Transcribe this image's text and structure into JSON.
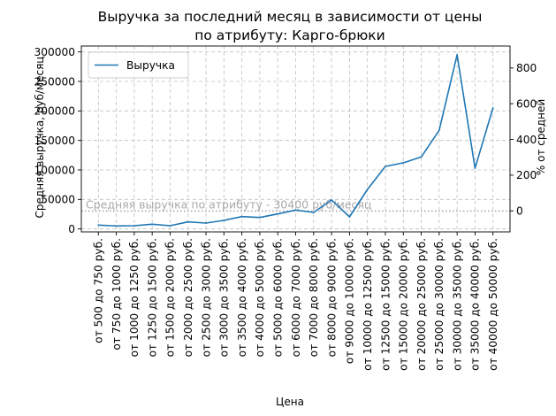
{
  "chart_data": {
    "type": "line",
    "title_line1": "Выручка за последний месяц в зависимости от цены",
    "title_line2": "по атрибуту: Карго-брюки",
    "xlabel": "Цена",
    "ylabel": "Средняя выручка, руб/месяц",
    "ylabel_right": "% от средней",
    "ylim": [
      -5000,
      310000
    ],
    "yticks": [
      0,
      50000,
      100000,
      150000,
      200000,
      250000,
      300000
    ],
    "ylim_right": [
      -117.7,
      922.9
    ],
    "yticks_right": [
      0,
      200,
      400,
      600,
      800
    ],
    "grid": true,
    "legend": "top-left",
    "categories": [
      "от 500 до 750 руб.",
      "от 750 до 1000 руб.",
      "от 1000 до 1250 руб.",
      "от 1250 до 1500 руб.",
      "от 1500 до 2000 руб.",
      "от 2000 до 2500 руб.",
      "от 2500 до 3000 руб.",
      "от 3000 до 3500 руб.",
      "от 3500 до 4000 руб.",
      "от 4000 до 5000 руб.",
      "от 5000 до 6000 руб.",
      "от 6000 до 7000 руб.",
      "от 7000 до 8000 руб.",
      "от 8000 до 9000 руб.",
      "от 9000 до 10000 руб.",
      "от 10000 до 12500 руб.",
      "от 12500 до 15000 руб.",
      "от 15000 до 20000 руб.",
      "от 20000 до 25000 руб.",
      "от 25000 до 30000 руб.",
      "от 30000 до 35000 руб.",
      "от 35000 до 40000 руб.",
      "от 40000 до 50000 руб."
    ],
    "series": [
      {
        "name": "Выручка",
        "color": "#1f77b4",
        "values": [
          6500,
          5000,
          5500,
          8000,
          5500,
          12000,
          10000,
          14500,
          21000,
          19500,
          25500,
          32000,
          28000,
          49000,
          20500,
          67000,
          106000,
          112000,
          122000,
          167000,
          295000,
          103000,
          205000
        ]
      }
    ],
    "average": {
      "value": 30400,
      "label": "Средняя выручка по атрибуту - 30400 руб/месяц"
    }
  }
}
